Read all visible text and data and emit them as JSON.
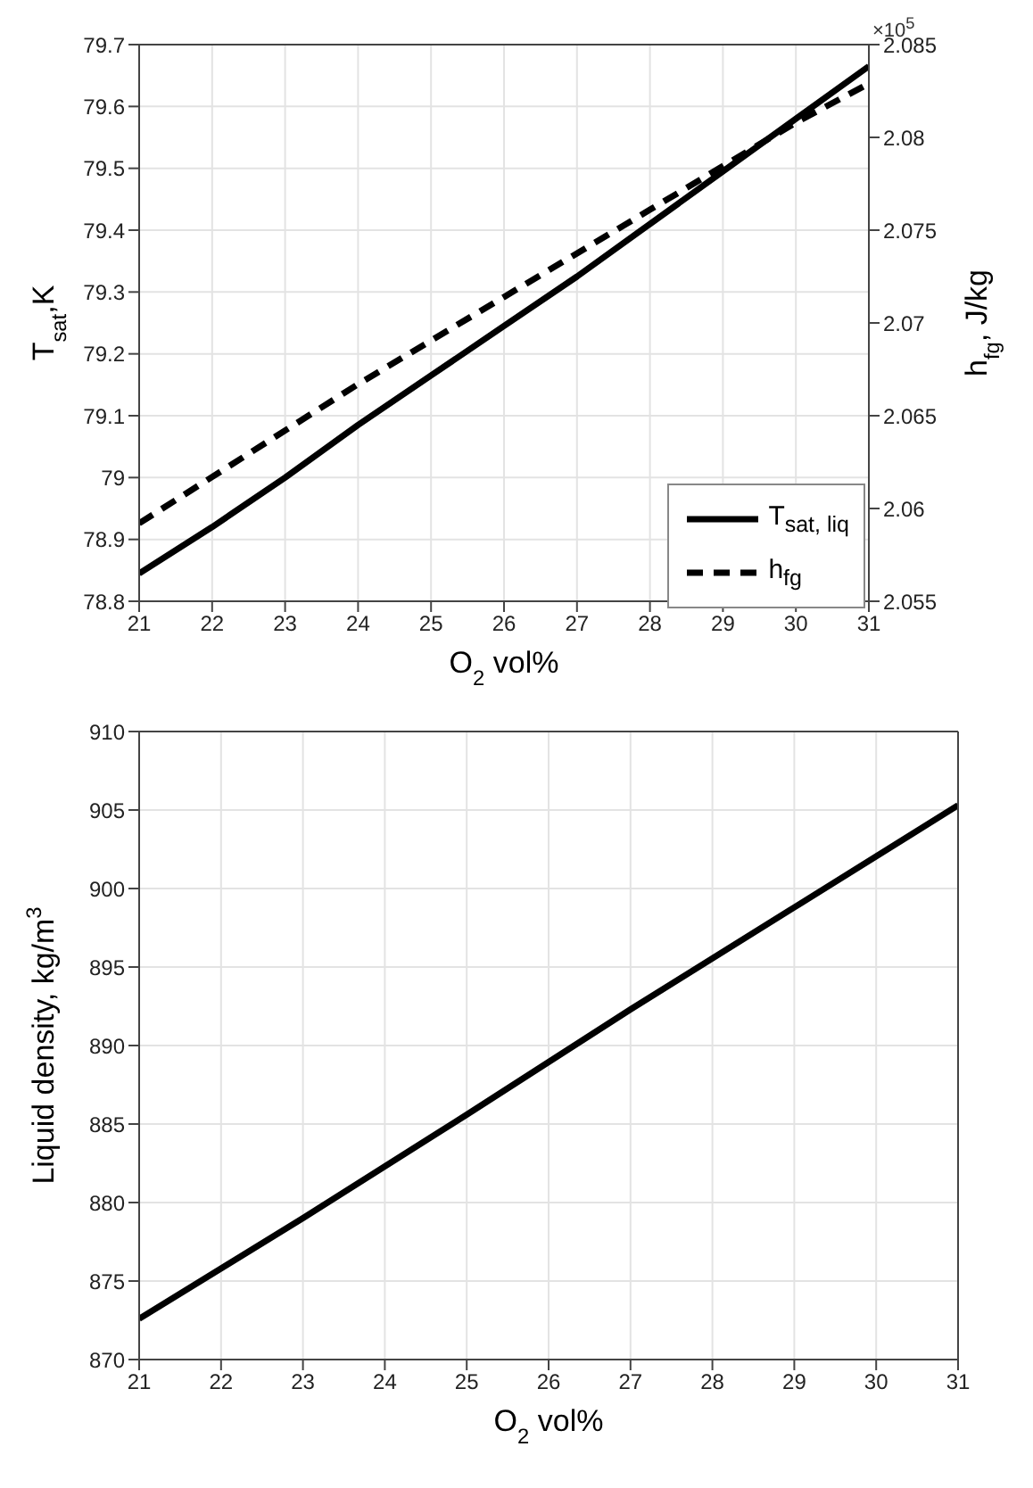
{
  "chart_data": [
    {
      "type": "line",
      "xlabel": "O$_{2}$ vol%",
      "ylabel": "T$_{sat}$,K",
      "y2label": "h$_{fg}$, J/kg",
      "annotations": [
        "×10$^{5}$"
      ],
      "x": [
        21,
        22,
        23,
        24,
        25,
        26,
        27,
        28,
        29,
        30,
        31
      ],
      "series": [
        {
          "name": "T$_{sat, liq}$",
          "color": "#000000",
          "line_style": "solid",
          "values": [
            78.845,
            78.92,
            79.0,
            79.085,
            79.165,
            79.245,
            79.325,
            79.41,
            79.495,
            79.58,
            79.665
          ]
        },
        {
          "name": "h$_{fg}$",
          "color": "#000000",
          "line_style": "dashed",
          "axis": "y2",
          "x": [
            21,
            22,
            24,
            26,
            28,
            30,
            31
          ],
          "values": [
            2.0592,
            2.0617,
            2.0667,
            2.0714,
            2.0761,
            2.0808,
            2.0829
          ]
        }
      ],
      "xlim": [
        21,
        31
      ],
      "xticks": [
        21,
        22,
        23,
        24,
        25,
        26,
        27,
        28,
        29,
        30,
        31
      ],
      "ylim": [
        78.8,
        79.7
      ],
      "yticks": [
        78.8,
        78.9,
        79,
        79.1,
        79.2,
        79.3,
        79.4,
        79.5,
        79.6,
        79.7
      ],
      "y2lim": [
        2.055,
        2.085
      ],
      "y2ticks": [
        2.055,
        2.06,
        2.065,
        2.07,
        2.075,
        2.08,
        2.085
      ],
      "grid": true,
      "legend": "bottom right",
      "marker": "none"
    },
    {
      "type": "line",
      "xlabel": "O$_{2}$ vol%",
      "ylabel": "Liquid density, kg/m$^{3}$",
      "x": [
        21,
        23,
        25,
        27,
        29,
        31
      ],
      "series": [
        {
          "color": "#000000",
          "line_style": "solid",
          "values": [
            872.6,
            879.0,
            885.6,
            892.3,
            898.8,
            905.3
          ]
        }
      ],
      "xlim": [
        21,
        31
      ],
      "xticks": [
        21,
        22,
        23,
        24,
        25,
        26,
        27,
        28,
        29,
        30,
        31
      ],
      "ylim": [
        870,
        910
      ],
      "yticks": [
        870,
        875,
        880,
        885,
        890,
        895,
        900,
        905,
        910
      ],
      "grid": true,
      "legend": false,
      "marker": "none"
    }
  ]
}
